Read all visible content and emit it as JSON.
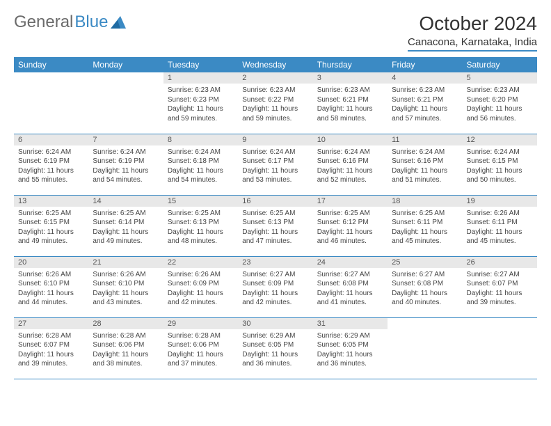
{
  "logo": {
    "text1": "General",
    "text2": "Blue"
  },
  "title": "October 2024",
  "location": "Canacona, Karnataka, India",
  "colors": {
    "header_bg": "#3b8ac4",
    "header_text": "#ffffff",
    "daynum_bg": "#e8e8e8",
    "border": "#3b8ac4",
    "body_text": "#444444",
    "logo_gray": "#6b6b6b",
    "logo_blue": "#3b8ac4"
  },
  "weekdays": [
    "Sunday",
    "Monday",
    "Tuesday",
    "Wednesday",
    "Thursday",
    "Friday",
    "Saturday"
  ],
  "weeks": [
    [
      null,
      null,
      {
        "n": "1",
        "sr": "6:23 AM",
        "ss": "6:23 PM",
        "dl": "11 hours and 59 minutes."
      },
      {
        "n": "2",
        "sr": "6:23 AM",
        "ss": "6:22 PM",
        "dl": "11 hours and 59 minutes."
      },
      {
        "n": "3",
        "sr": "6:23 AM",
        "ss": "6:21 PM",
        "dl": "11 hours and 58 minutes."
      },
      {
        "n": "4",
        "sr": "6:23 AM",
        "ss": "6:21 PM",
        "dl": "11 hours and 57 minutes."
      },
      {
        "n": "5",
        "sr": "6:23 AM",
        "ss": "6:20 PM",
        "dl": "11 hours and 56 minutes."
      }
    ],
    [
      {
        "n": "6",
        "sr": "6:24 AM",
        "ss": "6:19 PM",
        "dl": "11 hours and 55 minutes."
      },
      {
        "n": "7",
        "sr": "6:24 AM",
        "ss": "6:19 PM",
        "dl": "11 hours and 54 minutes."
      },
      {
        "n": "8",
        "sr": "6:24 AM",
        "ss": "6:18 PM",
        "dl": "11 hours and 54 minutes."
      },
      {
        "n": "9",
        "sr": "6:24 AM",
        "ss": "6:17 PM",
        "dl": "11 hours and 53 minutes."
      },
      {
        "n": "10",
        "sr": "6:24 AM",
        "ss": "6:16 PM",
        "dl": "11 hours and 52 minutes."
      },
      {
        "n": "11",
        "sr": "6:24 AM",
        "ss": "6:16 PM",
        "dl": "11 hours and 51 minutes."
      },
      {
        "n": "12",
        "sr": "6:24 AM",
        "ss": "6:15 PM",
        "dl": "11 hours and 50 minutes."
      }
    ],
    [
      {
        "n": "13",
        "sr": "6:25 AM",
        "ss": "6:15 PM",
        "dl": "11 hours and 49 minutes."
      },
      {
        "n": "14",
        "sr": "6:25 AM",
        "ss": "6:14 PM",
        "dl": "11 hours and 49 minutes."
      },
      {
        "n": "15",
        "sr": "6:25 AM",
        "ss": "6:13 PM",
        "dl": "11 hours and 48 minutes."
      },
      {
        "n": "16",
        "sr": "6:25 AM",
        "ss": "6:13 PM",
        "dl": "11 hours and 47 minutes."
      },
      {
        "n": "17",
        "sr": "6:25 AM",
        "ss": "6:12 PM",
        "dl": "11 hours and 46 minutes."
      },
      {
        "n": "18",
        "sr": "6:25 AM",
        "ss": "6:11 PM",
        "dl": "11 hours and 45 minutes."
      },
      {
        "n": "19",
        "sr": "6:26 AM",
        "ss": "6:11 PM",
        "dl": "11 hours and 45 minutes."
      }
    ],
    [
      {
        "n": "20",
        "sr": "6:26 AM",
        "ss": "6:10 PM",
        "dl": "11 hours and 44 minutes."
      },
      {
        "n": "21",
        "sr": "6:26 AM",
        "ss": "6:10 PM",
        "dl": "11 hours and 43 minutes."
      },
      {
        "n": "22",
        "sr": "6:26 AM",
        "ss": "6:09 PM",
        "dl": "11 hours and 42 minutes."
      },
      {
        "n": "23",
        "sr": "6:27 AM",
        "ss": "6:09 PM",
        "dl": "11 hours and 42 minutes."
      },
      {
        "n": "24",
        "sr": "6:27 AM",
        "ss": "6:08 PM",
        "dl": "11 hours and 41 minutes."
      },
      {
        "n": "25",
        "sr": "6:27 AM",
        "ss": "6:08 PM",
        "dl": "11 hours and 40 minutes."
      },
      {
        "n": "26",
        "sr": "6:27 AM",
        "ss": "6:07 PM",
        "dl": "11 hours and 39 minutes."
      }
    ],
    [
      {
        "n": "27",
        "sr": "6:28 AM",
        "ss": "6:07 PM",
        "dl": "11 hours and 39 minutes."
      },
      {
        "n": "28",
        "sr": "6:28 AM",
        "ss": "6:06 PM",
        "dl": "11 hours and 38 minutes."
      },
      {
        "n": "29",
        "sr": "6:28 AM",
        "ss": "6:06 PM",
        "dl": "11 hours and 37 minutes."
      },
      {
        "n": "30",
        "sr": "6:29 AM",
        "ss": "6:05 PM",
        "dl": "11 hours and 36 minutes."
      },
      {
        "n": "31",
        "sr": "6:29 AM",
        "ss": "6:05 PM",
        "dl": "11 hours and 36 minutes."
      },
      null,
      null
    ]
  ],
  "labels": {
    "sunrise": "Sunrise:",
    "sunset": "Sunset:",
    "daylight": "Daylight:"
  }
}
